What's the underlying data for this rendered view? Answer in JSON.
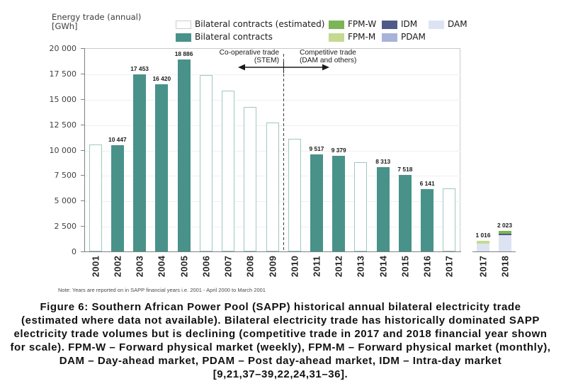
{
  "figure": {
    "y_axis_title_line1": "Energy trade (annual)",
    "y_axis_title_line2": "[GWh]",
    "note": "Note: Years are reported on in SAPP financial years i.e. 2001 - April 2000 to March 2001",
    "annotations": {
      "left_line1": "Co-operative trade",
      "left_line2": "(STEM)",
      "right_line1": "Competitive trade",
      "right_line2": "(DAM and others)"
    }
  },
  "legend": {
    "items": [
      {
        "label": "Bilateral contracts (estimated)",
        "color": "#ffffff",
        "border": "#cccccc",
        "col": 0,
        "row": 0
      },
      {
        "label": "Bilateral contracts",
        "color": "#48928a",
        "border": null,
        "col": 0,
        "row": 1
      },
      {
        "label": "FPM-W",
        "color": "#7cb554",
        "border": null,
        "col": 1,
        "row": 0
      },
      {
        "label": "FPM-M",
        "color": "#c5d990",
        "border": null,
        "col": 1,
        "row": 1
      },
      {
        "label": "IDM",
        "color": "#4f5a89",
        "border": null,
        "col": 2,
        "row": 0
      },
      {
        "label": "PDAM",
        "color": "#a9b2d8",
        "border": null,
        "col": 2,
        "row": 1
      },
      {
        "label": "DAM",
        "color": "#dde3f2",
        "border": null,
        "col": 3,
        "row": 0
      }
    ]
  },
  "chart_data": {
    "type": "bar",
    "title": "",
    "ylabel": "Energy trade (annual) [GWh]",
    "ylim": [
      0,
      20000
    ],
    "ytick_interval": 2500,
    "ytick_labels": [
      "20 000",
      "17 500",
      "15 000",
      "12 500",
      "10 000",
      "7 500",
      "5 000",
      "2 500",
      "0"
    ],
    "grid": true,
    "series_colors": {
      "Bilateral contracts": "#48928a",
      "Bilateral contracts (estimated)": "#ffffff",
      "FPM-W": "#7cb554",
      "FPM-M": "#c5d990",
      "IDM": "#4f5a89",
      "PDAM": "#a9b2d8",
      "DAM": "#dde3f2"
    },
    "main_bars": [
      {
        "year": "2001",
        "value": 10500,
        "estimated": true,
        "label": ""
      },
      {
        "year": "2002",
        "value": 10447,
        "estimated": false,
        "label": "10 447"
      },
      {
        "year": "2003",
        "value": 17453,
        "estimated": false,
        "label": "17 453"
      },
      {
        "year": "2004",
        "value": 16420,
        "estimated": false,
        "label": "16 420"
      },
      {
        "year": "2005",
        "value": 18886,
        "estimated": false,
        "label": "18 886"
      },
      {
        "year": "2006",
        "value": 17350,
        "estimated": true,
        "label": ""
      },
      {
        "year": "2007",
        "value": 15800,
        "estimated": true,
        "label": ""
      },
      {
        "year": "2008",
        "value": 14200,
        "estimated": true,
        "label": ""
      },
      {
        "year": "2009",
        "value": 12650,
        "estimated": true,
        "label": ""
      },
      {
        "year": "2010",
        "value": 11100,
        "estimated": true,
        "label": ""
      },
      {
        "year": "2011",
        "value": 9517,
        "estimated": false,
        "label": "9 517"
      },
      {
        "year": "2012",
        "value": 9379,
        "estimated": false,
        "label": "9 379"
      },
      {
        "year": "2013",
        "value": 8800,
        "estimated": true,
        "label": ""
      },
      {
        "year": "2014",
        "value": 8313,
        "estimated": false,
        "label": "8 313"
      },
      {
        "year": "2015",
        "value": 7518,
        "estimated": false,
        "label": "7 518"
      },
      {
        "year": "2016",
        "value": 6141,
        "estimated": false,
        "label": "6 141"
      },
      {
        "year": "2017",
        "value": 6200,
        "estimated": true,
        "label": ""
      }
    ],
    "divider_between": [
      "2009",
      "2010"
    ],
    "inset_stacked_bars": [
      {
        "year": "2017",
        "total": 1016,
        "label": "1 016",
        "segments": [
          {
            "name": "DAM",
            "value": 766
          },
          {
            "name": "FPM-M",
            "value": 250
          }
        ]
      },
      {
        "year": "2018",
        "total": 2023,
        "label": "2 023",
        "segments": [
          {
            "name": "DAM",
            "value": 1573
          },
          {
            "name": "IDM",
            "value": 170
          },
          {
            "name": "FPM-W",
            "value": 280
          }
        ]
      }
    ]
  },
  "caption": {
    "lines": [
      "Figure 6: Southern African Power Pool (SAPP) historical annual bilateral electricity trade",
      "(estimated where data not available). Bilateral electricity trade has historically dominated SAPP",
      "electricity trade volumes but is declining (competitive trade in 2017 and 2018 financial year shown",
      "for scale). FPM-W – Forward physical market (weekly), FPM-M – Forward physical market (monthly),",
      "DAM – Day-ahead market, PDAM – Post day-ahead market, IDM – Intra-day market",
      "[9,21,37–39,22,24,31–36]."
    ]
  }
}
